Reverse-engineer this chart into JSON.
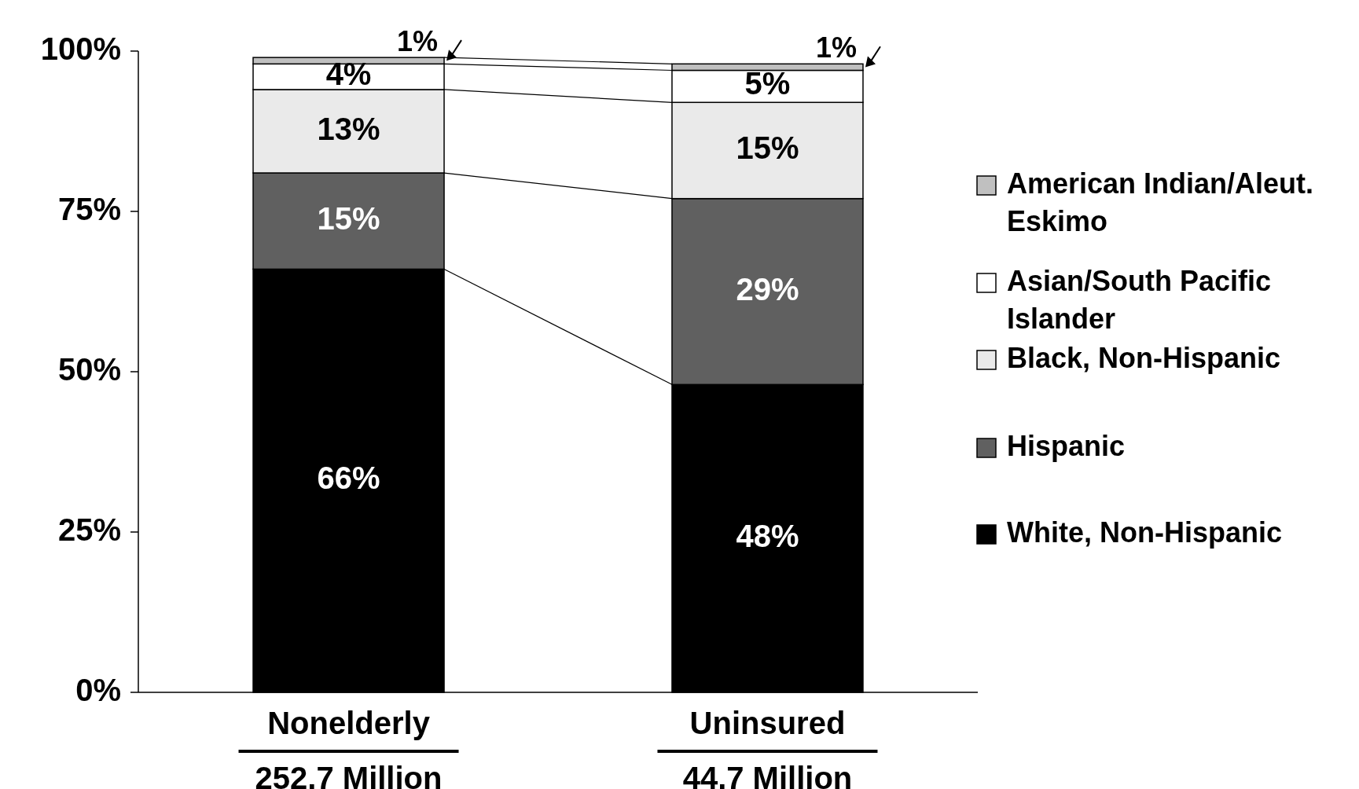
{
  "chart_data": {
    "type": "bar",
    "stacked": true,
    "categories": [
      "Nonelderly\n252.7 Million",
      "Uninsured\n44.7 Million"
    ],
    "series": [
      {
        "name": "White, Non-Hispanic",
        "color": "#000000",
        "values": [
          66,
          48
        ],
        "value_labels": [
          "66%",
          "48%"
        ]
      },
      {
        "name": "Hispanic",
        "color": "#606060",
        "values": [
          15,
          29
        ],
        "value_labels": [
          "15%",
          "29%"
        ]
      },
      {
        "name": "Black, Non-Hispanic",
        "color": "#eaeaea",
        "values": [
          13,
          15
        ],
        "value_labels": [
          "13%",
          "15%"
        ]
      },
      {
        "name": "Asian/South Pacific Islander",
        "color": "#ffffff",
        "values": [
          4,
          5
        ],
        "value_labels": [
          "4%",
          "5%"
        ]
      },
      {
        "name": "American Indian/Aleut. Eskimo",
        "color": "#c0c0c0",
        "values": [
          1,
          1
        ],
        "value_labels": [
          "1%",
          "1%"
        ]
      }
    ],
    "ylim": [
      0,
      100
    ],
    "yticks": [
      {
        "value": 0,
        "label": "0%"
      },
      {
        "value": 25,
        "label": "25%"
      },
      {
        "value": 50,
        "label": "50%"
      },
      {
        "value": 75,
        "label": "75%"
      },
      {
        "value": 100,
        "label": "100%"
      }
    ],
    "legend": "right",
    "grid": false
  }
}
